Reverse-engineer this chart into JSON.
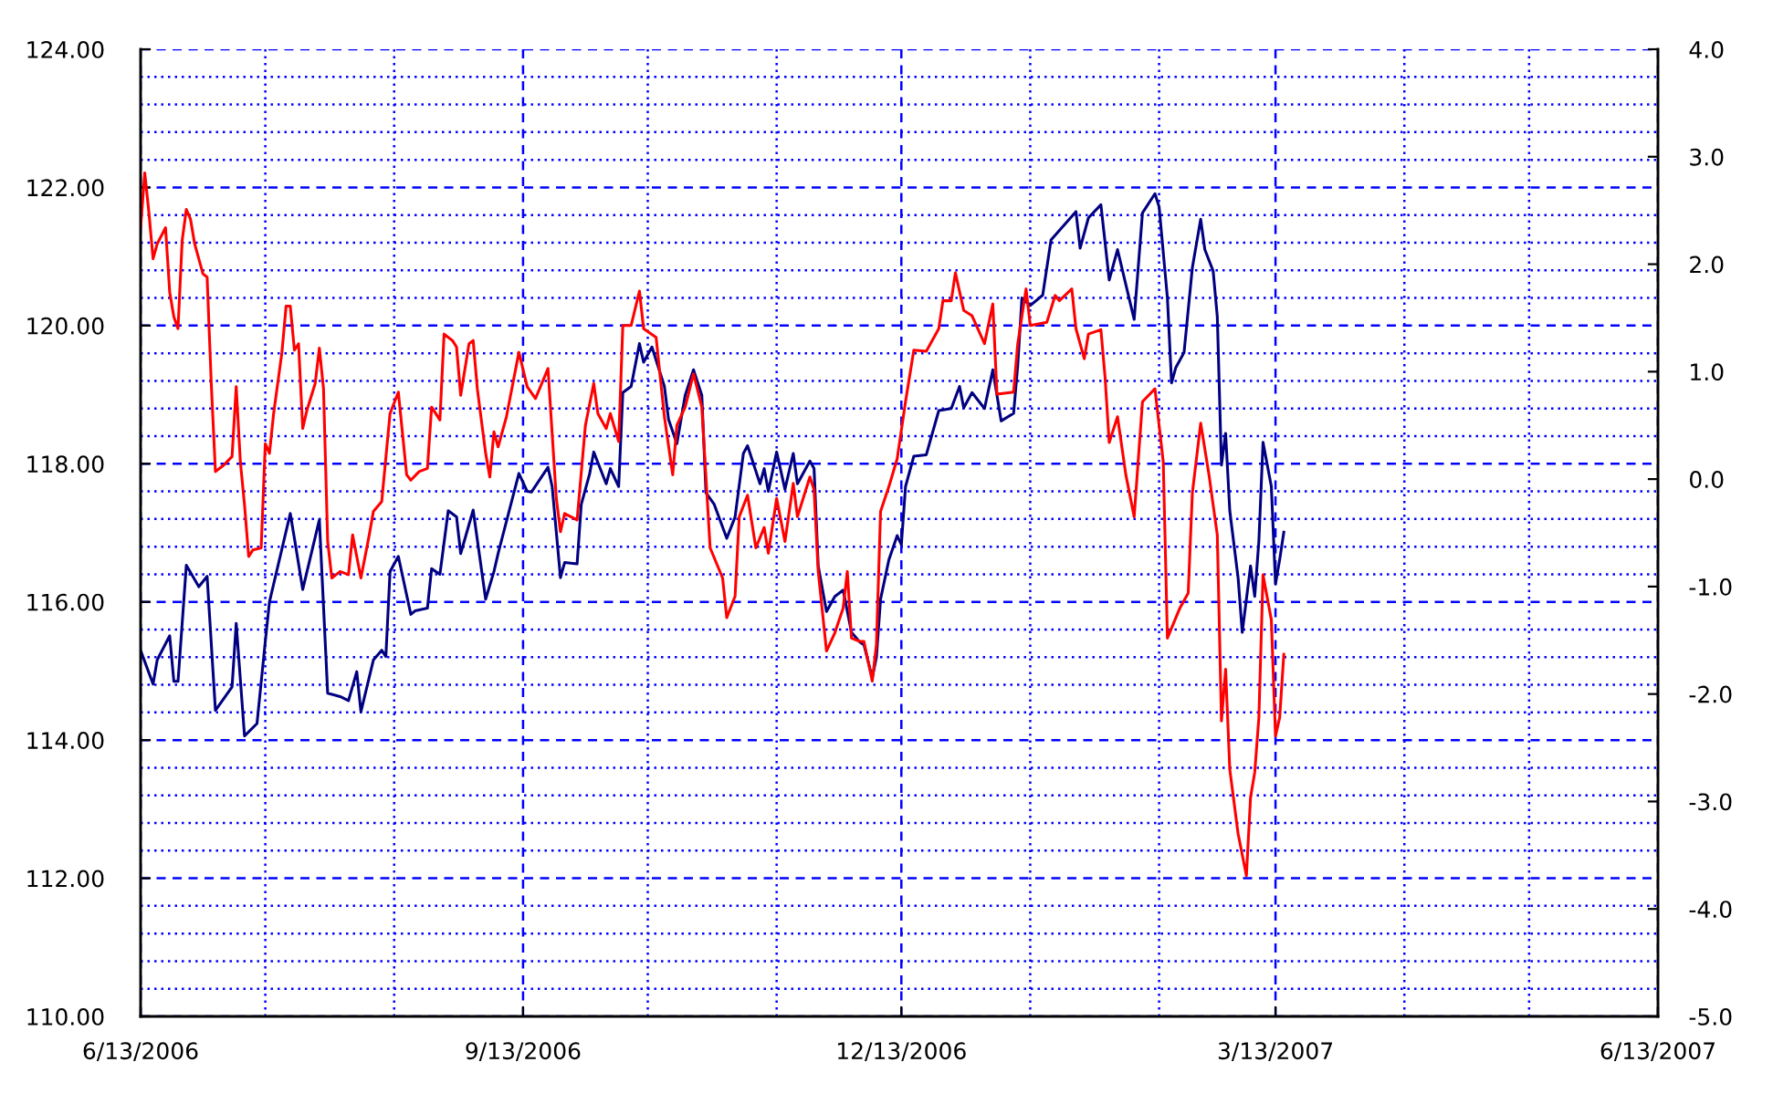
{
  "chart_data": {
    "type": "line",
    "series": [
      {
        "color": "#000080",
        "x": [
          "2006-06-13",
          "2006-06-16",
          "2006-06-17",
          "2006-06-20",
          "2006-06-21",
          "2006-06-22",
          "2006-06-24",
          "2006-06-27",
          "2006-06-29",
          "2006-07-01",
          "2006-07-05",
          "2006-07-06",
          "2006-07-08",
          "2006-07-11",
          "2006-07-13",
          "2006-07-14",
          "2006-07-19",
          "2006-07-20",
          "2006-07-22",
          "2006-07-26",
          "2006-07-28",
          "2006-07-31",
          "2006-08-02",
          "2006-08-04",
          "2006-08-05",
          "2006-08-08",
          "2006-08-10",
          "2006-08-11",
          "2006-08-12",
          "2006-08-14",
          "2006-08-17",
          "2006-08-18",
          "2006-08-21",
          "2006-08-22",
          "2006-08-24",
          "2006-08-26",
          "2006-08-28",
          "2006-08-29",
          "2006-09-01",
          "2006-09-04",
          "2006-09-06",
          "2006-09-07",
          "2006-09-12",
          "2006-09-14",
          "2006-09-15",
          "2006-09-19",
          "2006-09-20",
          "2006-09-22",
          "2006-09-23",
          "2006-09-26",
          "2006-09-27",
          "2006-09-29",
          "2006-09-30",
          "2006-10-03",
          "2006-10-04",
          "2006-10-06",
          "2006-10-07",
          "2006-10-09",
          "2006-10-11",
          "2006-10-12",
          "2006-10-14",
          "2006-10-17",
          "2006-10-18",
          "2006-10-20",
          "2006-10-22",
          "2006-10-24",
          "2006-10-26",
          "2006-10-27",
          "2006-10-29",
          "2006-11-01",
          "2006-11-03",
          "2006-11-05",
          "2006-11-06",
          "2006-11-09",
          "2006-11-10",
          "2006-11-11",
          "2006-11-13",
          "2006-11-15",
          "2006-11-17",
          "2006-11-18",
          "2006-11-21",
          "2006-11-22",
          "2006-11-23",
          "2006-11-25",
          "2006-11-27",
          "2006-11-29",
          "2006-12-01",
          "2006-12-03",
          "2006-12-04",
          "2006-12-06",
          "2006-12-07",
          "2006-12-08",
          "2006-12-10",
          "2006-12-12",
          "2006-12-13",
          "2006-12-14",
          "2006-12-16",
          "2006-12-19",
          "2006-12-22",
          "2006-12-25",
          "2006-12-27",
          "2006-12-28",
          "2006-12-30",
          "2007-01-02",
          "2007-01-04",
          "2007-01-06",
          "2007-01-09",
          "2007-01-10",
          "2007-01-11",
          "2007-01-13",
          "2007-01-16",
          "2007-01-18",
          "2007-01-24",
          "2007-01-25",
          "2007-01-27",
          "2007-01-30",
          "2007-02-01",
          "2007-02-03",
          "2007-02-07",
          "2007-02-09",
          "2007-02-12",
          "2007-02-13",
          "2007-02-15",
          "2007-02-16",
          "2007-02-17",
          "2007-02-19",
          "2007-02-21",
          "2007-02-23",
          "2007-02-24",
          "2007-02-26",
          "2007-02-27",
          "2007-02-28",
          "2007-03-01",
          "2007-03-02",
          "2007-03-04",
          "2007-03-05",
          "2007-03-07",
          "2007-03-08",
          "2007-03-09",
          "2007-03-10",
          "2007-03-12",
          "2007-03-13",
          "2007-03-14",
          "2007-03-15"
        ],
        "values": [
          115.3,
          114.81,
          115.16,
          115.51,
          114.85,
          114.85,
          116.53,
          116.22,
          116.37,
          114.43,
          114.77,
          115.69,
          114.06,
          114.24,
          115.43,
          116.0,
          117.28,
          116.92,
          116.18,
          117.19,
          114.68,
          114.63,
          114.57,
          114.99,
          114.41,
          115.16,
          115.3,
          115.21,
          116.44,
          116.66,
          115.82,
          115.87,
          115.91,
          116.48,
          116.4,
          117.32,
          117.23,
          116.7,
          117.33,
          116.04,
          116.44,
          116.7,
          117.86,
          117.6,
          117.59,
          117.95,
          117.67,
          116.35,
          116.57,
          116.55,
          117.41,
          117.85,
          118.17,
          117.71,
          117.93,
          117.67,
          119.03,
          119.12,
          119.74,
          119.47,
          119.69,
          119.12,
          118.64,
          118.29,
          118.99,
          119.36,
          118.99,
          117.58,
          117.41,
          116.92,
          117.23,
          118.15,
          118.26,
          117.71,
          117.93,
          117.6,
          118.17,
          117.63,
          118.15,
          117.71,
          118.04,
          117.93,
          116.52,
          115.86,
          116.08,
          116.17,
          115.56,
          115.42,
          115.38,
          114.9,
          115.2,
          116.04,
          116.61,
          116.96,
          116.83,
          117.67,
          118.11,
          118.13,
          118.77,
          118.8,
          119.12,
          118.81,
          119.03,
          118.8,
          119.36,
          118.62,
          118.73,
          119.43,
          120.4,
          120.29,
          120.44,
          121.24,
          121.65,
          121.12,
          121.56,
          121.75,
          120.66,
          121.1,
          120.09,
          121.63,
          121.91,
          121.72,
          120.4,
          119.17,
          119.39,
          119.61,
          120.84,
          121.54,
          121.1,
          120.79,
          120.13,
          117.98,
          118.44,
          117.32,
          116.35,
          115.56,
          116.52,
          116.08,
          116.88,
          118.31,
          117.67,
          116.26,
          116.61,
          117.01
        ]
      },
      {
        "color": "#ff0000",
        "axis": "y2",
        "x": [
          "2006-06-13",
          "2006-06-14",
          "2006-06-15",
          "2006-06-16",
          "2006-06-17",
          "2006-06-19",
          "2006-06-20",
          "2006-06-21",
          "2006-06-22",
          "2006-06-23",
          "2006-06-24",
          "2006-06-25",
          "2006-06-26",
          "2006-06-28",
          "2006-06-29",
          "2006-06-30",
          "2006-07-01",
          "2006-07-03",
          "2006-07-05",
          "2006-07-06",
          "2006-07-07",
          "2006-07-08",
          "2006-07-09",
          "2006-07-10",
          "2006-07-12",
          "2006-07-13",
          "2006-07-14",
          "2006-07-15",
          "2006-07-17",
          "2006-07-18",
          "2006-07-19",
          "2006-07-20",
          "2006-07-21",
          "2006-07-22",
          "2006-07-23",
          "2006-07-25",
          "2006-07-26",
          "2006-07-27",
          "2006-07-28",
          "2006-07-29",
          "2006-07-31",
          "2006-08-02",
          "2006-08-03",
          "2006-08-05",
          "2006-08-07",
          "2006-08-08",
          "2006-08-10",
          "2006-08-12",
          "2006-08-14",
          "2006-08-16",
          "2006-08-17",
          "2006-08-19",
          "2006-08-21",
          "2006-08-22",
          "2006-08-24",
          "2006-08-25",
          "2006-08-27",
          "2006-08-28",
          "2006-08-29",
          "2006-08-31",
          "2006-09-01",
          "2006-09-02",
          "2006-09-04",
          "2006-09-05",
          "2006-09-06",
          "2006-09-07",
          "2006-09-09",
          "2006-09-12",
          "2006-09-14",
          "2006-09-16",
          "2006-09-19",
          "2006-09-21",
          "2006-09-22",
          "2006-09-23",
          "2006-09-26",
          "2006-09-28",
          "2006-09-30",
          "2006-10-01",
          "2006-10-03",
          "2006-10-04",
          "2006-10-06",
          "2006-10-07",
          "2006-10-09",
          "2006-10-11",
          "2006-10-12",
          "2006-10-15",
          "2006-10-17",
          "2006-10-19",
          "2006-10-20",
          "2006-10-22",
          "2006-10-24",
          "2006-10-26",
          "2006-10-28",
          "2006-10-31",
          "2006-11-01",
          "2006-11-03",
          "2006-11-04",
          "2006-11-06",
          "2006-11-08",
          "2006-11-10",
          "2006-11-11",
          "2006-11-13",
          "2006-11-15",
          "2006-11-17",
          "2006-11-18",
          "2006-11-21",
          "2006-11-22",
          "2006-11-23",
          "2006-11-25",
          "2006-11-27",
          "2006-11-29",
          "2006-11-30",
          "2006-12-01",
          "2006-12-03",
          "2006-12-04",
          "2006-12-06",
          "2006-12-07",
          "2006-12-08",
          "2006-12-10",
          "2006-12-12",
          "2006-12-14",
          "2006-12-16",
          "2006-12-19",
          "2006-12-22",
          "2006-12-23",
          "2006-12-25",
          "2006-12-26",
          "2006-12-28",
          "2006-12-30",
          "2007-01-02",
          "2007-01-04",
          "2007-01-05",
          "2007-01-09",
          "2007-01-10",
          "2007-01-12",
          "2007-01-13",
          "2007-01-17",
          "2007-01-19",
          "2007-01-20",
          "2007-01-23",
          "2007-01-24",
          "2007-01-26",
          "2007-01-27",
          "2007-01-30",
          "2007-01-31",
          "2007-02-01",
          "2007-02-03",
          "2007-02-05",
          "2007-02-07",
          "2007-02-09",
          "2007-02-12",
          "2007-02-14",
          "2007-02-15",
          "2007-02-18",
          "2007-02-20",
          "2007-02-21",
          "2007-02-23",
          "2007-02-25",
          "2007-02-27",
          "2007-02-28",
          "2007-03-01",
          "2007-03-02",
          "2007-03-04",
          "2007-03-06",
          "2007-03-07",
          "2007-03-08",
          "2007-03-09",
          "2007-03-10",
          "2007-03-12",
          "2007-03-13",
          "2007-03-14",
          "2007-03-15"
        ],
        "values": [
          2.34,
          2.85,
          2.48,
          2.05,
          2.19,
          2.34,
          1.74,
          1.51,
          1.4,
          2.22,
          2.51,
          2.42,
          2.19,
          1.91,
          1.88,
          0.89,
          0.07,
          0.13,
          0.21,
          0.86,
          0.16,
          -0.24,
          -0.72,
          -0.66,
          -0.64,
          0.33,
          0.24,
          0.61,
          1.18,
          1.61,
          1.61,
          1.2,
          1.26,
          0.47,
          0.64,
          0.89,
          1.22,
          0.84,
          -0.58,
          -0.92,
          -0.86,
          -0.89,
          -0.52,
          -0.92,
          -0.52,
          -0.3,
          -0.21,
          0.61,
          0.81,
          0.04,
          -0.01,
          0.07,
          0.1,
          0.67,
          0.55,
          1.35,
          1.29,
          1.23,
          0.78,
          1.26,
          1.29,
          0.84,
          0.24,
          0.02,
          0.44,
          0.3,
          0.58,
          1.18,
          0.86,
          0.75,
          1.03,
          -0.18,
          -0.49,
          -0.32,
          -0.38,
          0.5,
          0.89,
          0.61,
          0.47,
          0.61,
          0.35,
          1.43,
          1.43,
          1.75,
          1.4,
          1.32,
          0.58,
          0.04,
          0.5,
          0.67,
          0.98,
          0.67,
          -0.64,
          -0.92,
          -1.29,
          -1.09,
          -0.35,
          -0.15,
          -0.64,
          -0.45,
          -0.69,
          -0.18,
          -0.58,
          -0.04,
          -0.35,
          0.02,
          -0.1,
          -0.86,
          -1.6,
          -1.43,
          -1.2,
          -0.86,
          -1.48,
          -1.51,
          -1.51,
          -1.88,
          -1.54,
          -0.3,
          -0.07,
          0.19,
          0.72,
          1.2,
          1.19,
          1.4,
          1.66,
          1.66,
          1.92,
          1.57,
          1.52,
          1.26,
          1.63,
          0.79,
          0.81,
          1.26,
          1.77,
          1.43,
          1.46,
          1.71,
          1.66,
          1.77,
          1.4,
          1.12,
          1.35,
          1.39,
          0.95,
          0.34,
          0.58,
          0.04,
          -0.35,
          0.72,
          0.84,
          0.16,
          -1.48,
          -1.2,
          -1.06,
          -0.13,
          0.52,
          0.04,
          -0.52,
          -2.25,
          -1.77,
          -2.7,
          -3.3,
          -3.69,
          -2.96,
          -2.73,
          -2.22,
          -0.89,
          -1.31,
          -2.39,
          -2.22,
          -1.63
        ]
      }
    ],
    "xlim": [
      "2006-06-13",
      "2007-06-13"
    ],
    "xticks": [
      {
        "value": "2006-06-13",
        "label": "6/13/2006"
      },
      {
        "value": "2006-07-13",
        "label": null
      },
      {
        "value": "2006-08-13",
        "label": null
      },
      {
        "value": "2006-09-13",
        "label": "9/13/2006"
      },
      {
        "value": "2006-10-13",
        "label": null
      },
      {
        "value": "2006-11-13",
        "label": null
      },
      {
        "value": "2006-12-13",
        "label": "12/13/2006"
      },
      {
        "value": "2007-01-13",
        "label": null
      },
      {
        "value": "2007-02-13",
        "label": null
      },
      {
        "value": "2007-03-13",
        "label": "3/13/2007"
      },
      {
        "value": "2007-04-13",
        "label": null
      },
      {
        "value": "2007-05-13",
        "label": null
      },
      {
        "value": "2007-06-13",
        "label": "6/13/2007"
      }
    ],
    "ylim": [
      110,
      124
    ],
    "yticks": [
      {
        "value": 110,
        "label": "110.00"
      },
      {
        "value": 110.4,
        "label": null
      },
      {
        "value": 110.8,
        "label": null
      },
      {
        "value": 111.2,
        "label": null
      },
      {
        "value": 111.6,
        "label": null
      },
      {
        "value": 112,
        "label": "112.00"
      },
      {
        "value": 112.4,
        "label": null
      },
      {
        "value": 112.8,
        "label": null
      },
      {
        "value": 113.2,
        "label": null
      },
      {
        "value": 113.6,
        "label": null
      },
      {
        "value": 114,
        "label": "114.00"
      },
      {
        "value": 114.4,
        "label": null
      },
      {
        "value": 114.8,
        "label": null
      },
      {
        "value": 115.2,
        "label": null
      },
      {
        "value": 115.6,
        "label": null
      },
      {
        "value": 116,
        "label": "116.00"
      },
      {
        "value": 116.4,
        "label": null
      },
      {
        "value": 116.8,
        "label": null
      },
      {
        "value": 117.2,
        "label": null
      },
      {
        "value": 117.6,
        "label": null
      },
      {
        "value": 118,
        "label": "118.00"
      },
      {
        "value": 118.4,
        "label": null
      },
      {
        "value": 118.8,
        "label": null
      },
      {
        "value": 119.2,
        "label": null
      },
      {
        "value": 119.6,
        "label": null
      },
      {
        "value": 120,
        "label": "120.00"
      },
      {
        "value": 120.4,
        "label": null
      },
      {
        "value": 120.8,
        "label": null
      },
      {
        "value": 121.2,
        "label": null
      },
      {
        "value": 121.6,
        "label": null
      },
      {
        "value": 122,
        "label": "122.00"
      },
      {
        "value": 122.4,
        "label": null
      },
      {
        "value": 122.8,
        "label": null
      },
      {
        "value": 123.2,
        "label": null
      },
      {
        "value": 123.6,
        "label": null
      },
      {
        "value": 124,
        "label": "124.00"
      }
    ],
    "y2lim": [
      -5,
      4
    ],
    "y2ticks": [
      {
        "value": -5,
        "label": "-5.0"
      },
      {
        "value": -4,
        "label": "-4.0"
      },
      {
        "value": -3,
        "label": "-3.0"
      },
      {
        "value": -2,
        "label": "-2.0"
      },
      {
        "value": -1,
        "label": "-1.0"
      },
      {
        "value": 0,
        "label": "0.0"
      },
      {
        "value": 1,
        "label": "1.0"
      },
      {
        "value": 2,
        "label": "2.0"
      },
      {
        "value": 3,
        "label": "3.0"
      },
      {
        "value": 4,
        "label": "4.0"
      }
    ],
    "grid": true
  }
}
